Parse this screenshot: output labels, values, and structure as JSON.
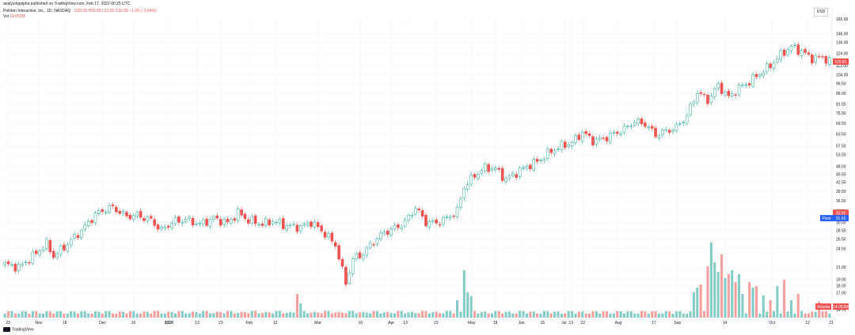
{
  "header": {
    "published_line": "analyzingalpha published on TradingView.com, Feb 17, 2022 00:25 UTC",
    "instrument": "Peloton Interactive, Inc., 1D, NASDAQ",
    "ohlc": "O32.16 H33.00 L31.55 C32.05 −1.00 (−3.04%)",
    "volume_label": "Vol",
    "volume_value": "14.052M",
    "currency": "USD"
  },
  "footer": {
    "brand": "TradingView"
  },
  "colors": {
    "up": "#26a69a",
    "down": "#ef5350",
    "up_volume": "#84cdc6",
    "down_volume": "#f5a09f",
    "grid": "#f0f3fa",
    "text": "#131722",
    "axis_border": "#e0e3eb",
    "pivot": "#2962ff"
  },
  "chart_data": {
    "type": "candlestick",
    "price_scale": "log",
    "x_start": "2019-10-21",
    "x_end": "2020-10-30",
    "ylim": [
      14.75,
      165.0
    ],
    "price_ticks": [
      "165.00",
      "146.00",
      "136.00",
      "124.00",
      "112.00",
      "104.00",
      "96.50",
      "89.00",
      "81.50",
      "75.50",
      "69.50",
      "63.50",
      "57.50",
      "53.50",
      "48.50",
      "45.50",
      "42.50",
      "39.50",
      "36.50",
      "33.50",
      "30.50",
      "28.50",
      "26.50",
      "24.50",
      "21.00",
      "19.00",
      "18.00",
      "17.00",
      "14.75"
    ],
    "time_ticks": [
      "23",
      "Nov",
      "18",
      "Dec",
      "16",
      "2020",
      "13",
      "23",
      "Feb",
      "12",
      "Mar",
      "16",
      "Apr",
      "13",
      "22",
      "May",
      "18",
      "Jun",
      "15",
      "Jul",
      "13",
      "22",
      "Aug",
      "17",
      "Sep",
      "14",
      "Oct",
      "12",
      "21"
    ],
    "price_labels": [
      {
        "text": "115.81",
        "type": "last",
        "price": 115.81
      },
      {
        "text": "33.00",
        "type": "high",
        "price": 33.0
      },
      {
        "text": "31.55",
        "type": "pivot",
        "label": "Pivot",
        "price": 31.55
      }
    ],
    "volume_label": {
      "text": "14.052M",
      "tag": "Volume"
    },
    "waypoints": [
      [
        0,
        21.5
      ],
      [
        4,
        21.0
      ],
      [
        8,
        23.0
      ],
      [
        12,
        25.5
      ],
      [
        14,
        23.0
      ],
      [
        18,
        25.5
      ],
      [
        22,
        28.5
      ],
      [
        26,
        32.5
      ],
      [
        29,
        34.0
      ],
      [
        31,
        34.5
      ],
      [
        35,
        32.0
      ],
      [
        38,
        32.3
      ],
      [
        42,
        31.0
      ],
      [
        45,
        28.5
      ],
      [
        48,
        30.5
      ],
      [
        52,
        31.2
      ],
      [
        56,
        30.0
      ],
      [
        60,
        31.5
      ],
      [
        64,
        30.3
      ],
      [
        67,
        33.0
      ],
      [
        70,
        31.0
      ],
      [
        74,
        30.0
      ],
      [
        77,
        30.8
      ],
      [
        81,
        29.6
      ],
      [
        85,
        29.3
      ],
      [
        88,
        30.5
      ],
      [
        91,
        28.5
      ],
      [
        95,
        25.3
      ],
      [
        98,
        18.4
      ],
      [
        100,
        22.5
      ],
      [
        103,
        23.5
      ],
      [
        106,
        26.0
      ],
      [
        109,
        28.0
      ],
      [
        112,
        29.0
      ],
      [
        115,
        30.5
      ],
      [
        118,
        34.5
      ],
      [
        121,
        30.5
      ],
      [
        124,
        30.3
      ],
      [
        127,
        31.5
      ],
      [
        130,
        33.5
      ],
      [
        132,
        41.0
      ],
      [
        135,
        45.0
      ],
      [
        138,
        48.0
      ],
      [
        141,
        47.5
      ],
      [
        144,
        43.5
      ],
      [
        147,
        46.0
      ],
      [
        150,
        48.5
      ],
      [
        153,
        50.5
      ],
      [
        157,
        55.0
      ],
      [
        160,
        57.5
      ],
      [
        163,
        59.0
      ],
      [
        166,
        64.5
      ],
      [
        169,
        60.0
      ],
      [
        172,
        61.0
      ],
      [
        175,
        63.5
      ],
      [
        178,
        66.0
      ],
      [
        181,
        70.5
      ],
      [
        184,
        69.0
      ],
      [
        187,
        63.0
      ],
      [
        190,
        65.0
      ],
      [
        193,
        67.0
      ],
      [
        196,
        74.0
      ],
      [
        199,
        90.0
      ],
      [
        202,
        84.0
      ],
      [
        205,
        95.0
      ],
      [
        208,
        86.0
      ],
      [
        211,
        93.0
      ],
      [
        214,
        98.0
      ],
      [
        217,
        105.0
      ],
      [
        220,
        112.0
      ],
      [
        223,
        123.0
      ],
      [
        226,
        131.0
      ],
      [
        229,
        126.0
      ],
      [
        232,
        119.0
      ],
      [
        235,
        120.0
      ],
      [
        237,
        116.0
      ]
    ],
    "volume_spikes": [
      {
        "i": 84,
        "v": 0.3
      },
      {
        "i": 85,
        "v": 0.18
      },
      {
        "i": 130,
        "v": 0.22
      },
      {
        "i": 132,
        "v": 0.6
      },
      {
        "i": 133,
        "v": 0.32
      },
      {
        "i": 134,
        "v": 0.27
      },
      {
        "i": 198,
        "v": 0.32
      },
      {
        "i": 199,
        "v": 0.38
      },
      {
        "i": 200,
        "v": 0.42
      },
      {
        "i": 202,
        "v": 0.65
      },
      {
        "i": 203,
        "v": 0.95
      },
      {
        "i": 204,
        "v": 0.7
      },
      {
        "i": 205,
        "v": 0.58
      },
      {
        "i": 206,
        "v": 0.8
      },
      {
        "i": 207,
        "v": 0.5
      },
      {
        "i": 208,
        "v": 0.55
      },
      {
        "i": 209,
        "v": 0.6
      },
      {
        "i": 210,
        "v": 0.45
      },
      {
        "i": 211,
        "v": 0.55
      },
      {
        "i": 212,
        "v": 0.3
      },
      {
        "i": 214,
        "v": 0.45
      },
      {
        "i": 215,
        "v": 0.38
      },
      {
        "i": 216,
        "v": 0.4
      },
      {
        "i": 218,
        "v": 0.28
      },
      {
        "i": 220,
        "v": 0.22
      },
      {
        "i": 222,
        "v": 0.4
      },
      {
        "i": 224,
        "v": 0.48
      },
      {
        "i": 226,
        "v": 0.22
      },
      {
        "i": 228,
        "v": 0.3
      },
      {
        "i": 234,
        "v": 0.2
      }
    ]
  }
}
